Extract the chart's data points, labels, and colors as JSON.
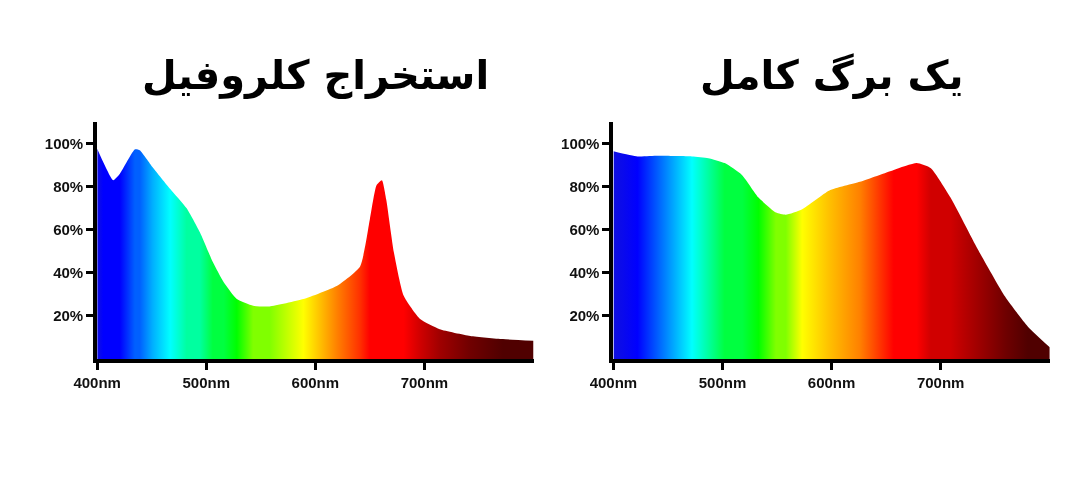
{
  "chart_data": [
    {
      "type": "area",
      "title": "استخراج کلروفیل",
      "x": [
        400,
        405.5,
        414.7,
        420.8,
        434.6,
        439,
        451,
        467,
        482,
        494,
        506,
        516,
        528,
        543,
        558,
        589,
        620,
        641,
        650,
        656,
        661,
        665,
        672,
        681,
        696,
        714,
        742,
        772,
        800
      ],
      "values": [
        97.7,
        91.5,
        83,
        86,
        97.4,
        97,
        89,
        79,
        70,
        59,
        45,
        35.6,
        27.8,
        24.7,
        24.4,
        27.8,
        34,
        43,
        65,
        80.6,
        83,
        74,
        49.5,
        29.3,
        18.5,
        13.8,
        10.7,
        9.2,
        8.4
      ],
      "colors": [
        "#1010e0",
        "#0000ff",
        "#0000ff",
        "#0000ff",
        "#0060ff",
        "#0060ff",
        "#00b0ff",
        "#00ffff",
        "#00ffa0",
        "#00ffa0",
        "#00ff40",
        "#00ff40",
        "#00ff00",
        "#80ff00",
        "#80ff00",
        "#ffff00",
        "#ff8000",
        "#ff3000",
        "#ff0000",
        "#ff0000",
        "#ff0000",
        "#ff0000",
        "#ff0000",
        "#ff0000",
        "#d00000",
        "#a00000",
        "#700000",
        "#500000",
        "#500000"
      ],
      "xlim": [
        400,
        800
      ],
      "ylim": [
        0,
        110
      ],
      "xticks": [
        {
          "value": 400,
          "label": "400nm"
        },
        {
          "value": 500,
          "label": "500nm"
        },
        {
          "value": 600,
          "label": "600nm"
        },
        {
          "value": 700,
          "label": "700nm"
        }
      ],
      "yticks": [
        {
          "value": 20,
          "label": "20%"
        },
        {
          "value": 40,
          "label": "40%"
        },
        {
          "value": 60,
          "label": "60%"
        },
        {
          "value": 80,
          "label": "80%"
        },
        {
          "value": 100,
          "label": "100%"
        }
      ]
    },
    {
      "type": "area",
      "title": "یک برگ کامل",
      "x": [
        400,
        422,
        441,
        472,
        487,
        502,
        518,
        533,
        549,
        558,
        573,
        598,
        626,
        657,
        678,
        691,
        709,
        734,
        759,
        780,
        800
      ],
      "values": [
        96.5,
        94.1,
        94.4,
        94.1,
        93.3,
        91,
        85.4,
        75,
        68,
        67,
        69.6,
        78.3,
        82.3,
        87.8,
        91,
        88.6,
        75,
        51,
        29,
        15,
        5.4
      ],
      "colors": [
        "#1010e0",
        "#0000ff",
        "#0060ff",
        "#00ffff",
        "#00ffa0",
        "#00ff40",
        "#00ff40",
        "#00ff00",
        "#80ff00",
        "#80ff00",
        "#ffff00",
        "#ffc000",
        "#ff8000",
        "#ff0000",
        "#ff0000",
        "#d00000",
        "#d00000",
        "#a00000",
        "#700000",
        "#500000",
        "#500000"
      ],
      "xlim": [
        400,
        800
      ],
      "ylim": [
        0,
        110
      ],
      "xticks": [
        {
          "value": 400,
          "label": "400nm"
        },
        {
          "value": 500,
          "label": "500nm"
        },
        {
          "value": 600,
          "label": "600nm"
        },
        {
          "value": 700,
          "label": "700nm"
        }
      ],
      "yticks": [
        {
          "value": 20,
          "label": "20%"
        },
        {
          "value": 40,
          "label": "40%"
        },
        {
          "value": 60,
          "label": "60%"
        },
        {
          "value": 80,
          "label": "80%"
        },
        {
          "value": 100,
          "label": "100%"
        }
      ]
    }
  ]
}
